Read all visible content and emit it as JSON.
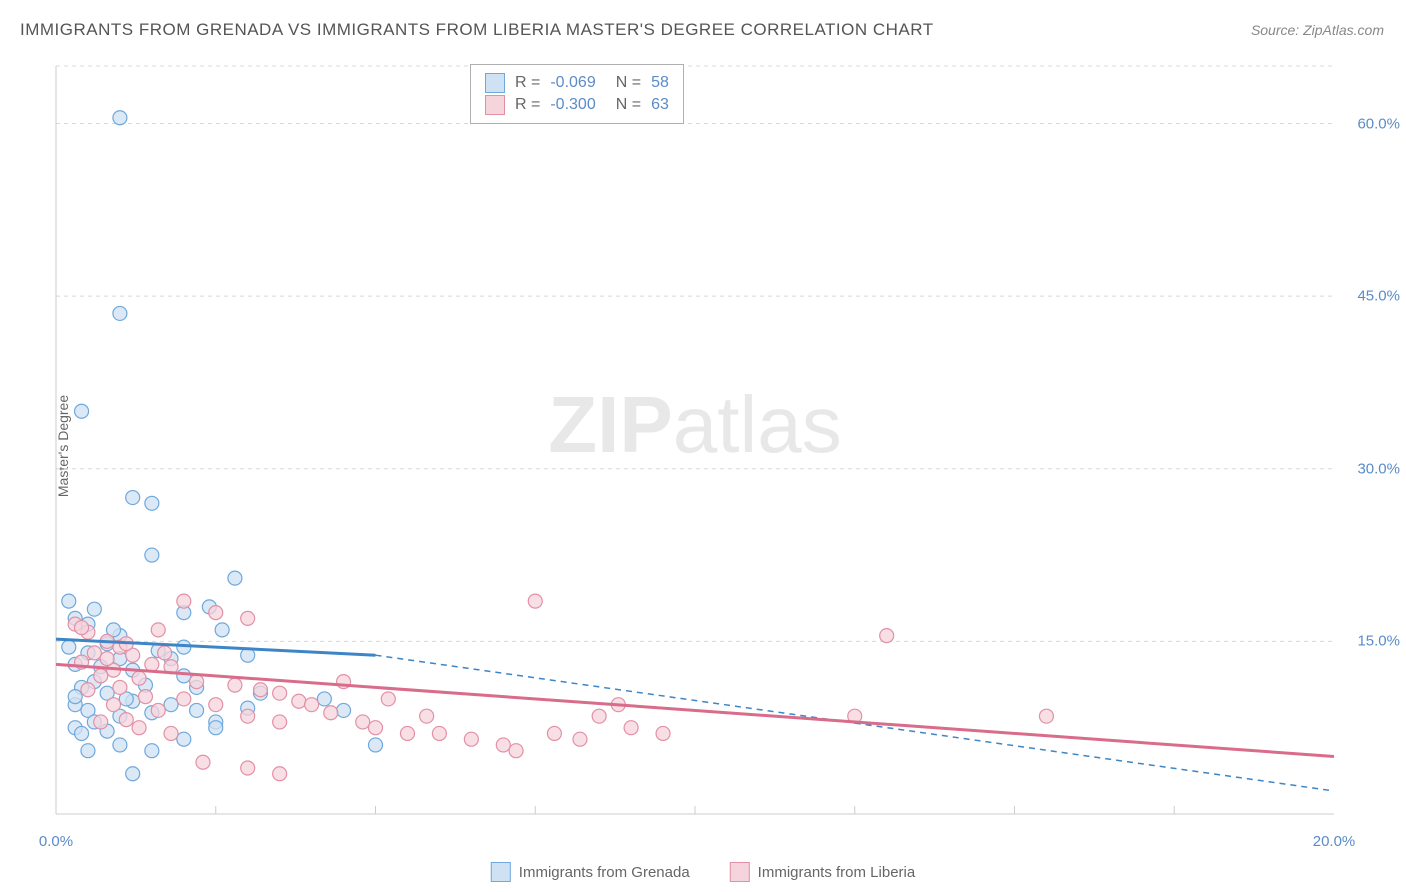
{
  "title": "IMMIGRANTS FROM GRENADA VS IMMIGRANTS FROM LIBERIA MASTER'S DEGREE CORRELATION CHART",
  "source": "Source: ZipAtlas.com",
  "ylabel": "Master's Degree",
  "watermark_a": "ZIP",
  "watermark_b": "atlas",
  "chart": {
    "type": "scatter",
    "xlim": [
      0,
      20
    ],
    "ylim": [
      0,
      65
    ],
    "xticks": [
      0,
      20
    ],
    "xtick_labels": [
      "0.0%",
      "20.0%"
    ],
    "yticks": [
      15,
      30,
      45,
      60
    ],
    "ytick_labels": [
      "15.0%",
      "30.0%",
      "45.0%",
      "60.0%"
    ],
    "x_minor_ticks": [
      2.5,
      5,
      7.5,
      10,
      12.5,
      15,
      17.5
    ],
    "background_color": "#ffffff",
    "grid_color": "#d8d8d8",
    "axis_color": "#cccccc",
    "tick_label_color": "#5b8bc9",
    "marker_radius": 7,
    "marker_stroke_width": 1.2,
    "line_width_solid": 3,
    "line_width_dash": 1.5,
    "series": [
      {
        "name": "Immigrants from Grenada",
        "fill": "#cfe2f3",
        "stroke": "#6fa8dc",
        "line_color": "#3d85c6",
        "R_label": "R = ",
        "R": "-0.069",
        "N_label": "N = ",
        "N": "58",
        "trend_solid": {
          "x1": 0,
          "y1": 15.2,
          "x2": 5,
          "y2": 13.8
        },
        "trend_dash": {
          "x1": 5,
          "y1": 13.8,
          "x2": 20,
          "y2": 2.0
        },
        "points": [
          [
            1.0,
            60.5
          ],
          [
            1.0,
            43.5
          ],
          [
            0.4,
            35.0
          ],
          [
            1.2,
            27.5
          ],
          [
            1.5,
            27.0
          ],
          [
            1.5,
            22.5
          ],
          [
            0.2,
            18.5
          ],
          [
            0.3,
            17.0
          ],
          [
            2.8,
            20.5
          ],
          [
            2.4,
            18.0
          ],
          [
            1.0,
            15.5
          ],
          [
            0.5,
            16.5
          ],
          [
            0.8,
            14.8
          ],
          [
            0.5,
            14.0
          ],
          [
            0.3,
            13.0
          ],
          [
            1.0,
            13.5
          ],
          [
            1.2,
            12.5
          ],
          [
            0.6,
            11.5
          ],
          [
            0.4,
            11.0
          ],
          [
            1.6,
            14.2
          ],
          [
            1.8,
            13.5
          ],
          [
            2.0,
            12.0
          ],
          [
            2.2,
            11.0
          ],
          [
            0.8,
            10.5
          ],
          [
            0.3,
            9.5
          ],
          [
            0.5,
            9.0
          ],
          [
            1.2,
            9.8
          ],
          [
            1.0,
            8.5
          ],
          [
            0.6,
            8.0
          ],
          [
            0.3,
            7.5
          ],
          [
            0.4,
            7.0
          ],
          [
            0.8,
            7.2
          ],
          [
            1.5,
            8.8
          ],
          [
            1.8,
            9.5
          ],
          [
            2.2,
            9.0
          ],
          [
            2.5,
            8.0
          ],
          [
            3.0,
            13.8
          ],
          [
            3.2,
            10.5
          ],
          [
            3.0,
            9.2
          ],
          [
            4.2,
            10.0
          ],
          [
            4.5,
            9.0
          ],
          [
            5.0,
            6.0
          ],
          [
            1.0,
            6.0
          ],
          [
            1.5,
            5.5
          ],
          [
            0.5,
            5.5
          ],
          [
            2.0,
            6.5
          ],
          [
            2.5,
            7.5
          ],
          [
            1.2,
            3.5
          ],
          [
            2.0,
            14.5
          ],
          [
            0.2,
            14.5
          ],
          [
            0.7,
            12.8
          ],
          [
            1.4,
            11.2
          ],
          [
            0.9,
            16.0
          ],
          [
            0.6,
            17.8
          ],
          [
            1.1,
            10.0
          ],
          [
            0.3,
            10.2
          ],
          [
            2.0,
            17.5
          ],
          [
            2.6,
            16.0
          ]
        ]
      },
      {
        "name": "Immigrants from Liberia",
        "fill": "#f6d4dc",
        "stroke": "#e290a5",
        "line_color": "#d96b8b",
        "R_label": "R = ",
        "R": "-0.300",
        "N_label": "N = ",
        "N": "63",
        "trend_solid": {
          "x1": 0,
          "y1": 13.0,
          "x2": 20,
          "y2": 5.0
        },
        "trend_dash": null,
        "points": [
          [
            0.3,
            16.5
          ],
          [
            0.5,
            15.8
          ],
          [
            0.8,
            15.0
          ],
          [
            1.0,
            14.5
          ],
          [
            0.6,
            14.0
          ],
          [
            1.2,
            13.8
          ],
          [
            0.4,
            13.2
          ],
          [
            1.5,
            13.0
          ],
          [
            0.9,
            12.5
          ],
          [
            1.8,
            12.8
          ],
          [
            0.7,
            12.0
          ],
          [
            1.3,
            11.8
          ],
          [
            2.0,
            18.5
          ],
          [
            2.5,
            17.5
          ],
          [
            3.0,
            17.0
          ],
          [
            2.2,
            11.5
          ],
          [
            2.8,
            11.2
          ],
          [
            3.2,
            10.8
          ],
          [
            2.0,
            10.0
          ],
          [
            2.5,
            9.5
          ],
          [
            3.5,
            10.5
          ],
          [
            3.8,
            9.8
          ],
          [
            3.0,
            8.5
          ],
          [
            3.5,
            8.0
          ],
          [
            4.0,
            9.5
          ],
          [
            4.3,
            8.8
          ],
          [
            4.8,
            8.0
          ],
          [
            5.0,
            7.5
          ],
          [
            4.5,
            11.5
          ],
          [
            5.2,
            10.0
          ],
          [
            5.5,
            7.0
          ],
          [
            5.8,
            8.5
          ],
          [
            6.0,
            7.0
          ],
          [
            6.5,
            6.5
          ],
          [
            7.0,
            6.0
          ],
          [
            7.2,
            5.5
          ],
          [
            7.5,
            18.5
          ],
          [
            7.8,
            7.0
          ],
          [
            3.5,
            3.5
          ],
          [
            3.0,
            4.0
          ],
          [
            2.3,
            4.5
          ],
          [
            8.5,
            8.5
          ],
          [
            8.8,
            9.5
          ],
          [
            9.0,
            7.5
          ],
          [
            8.2,
            6.5
          ],
          [
            9.5,
            7.0
          ],
          [
            13.0,
            15.5
          ],
          [
            12.5,
            8.5
          ],
          [
            15.5,
            8.5
          ],
          [
            1.6,
            16.0
          ],
          [
            1.0,
            11.0
          ],
          [
            1.4,
            10.2
          ],
          [
            0.5,
            10.8
          ],
          [
            0.9,
            9.5
          ],
          [
            1.6,
            9.0
          ],
          [
            1.1,
            8.2
          ],
          [
            0.7,
            8.0
          ],
          [
            1.3,
            7.5
          ],
          [
            1.8,
            7.0
          ],
          [
            0.4,
            16.2
          ],
          [
            0.8,
            13.5
          ],
          [
            1.1,
            14.8
          ],
          [
            1.7,
            14.0
          ]
        ]
      }
    ]
  },
  "legend": {
    "items": [
      {
        "label": "Immigrants from Grenada",
        "fill": "#cfe2f3",
        "stroke": "#6fa8dc"
      },
      {
        "label": "Immigrants from Liberia",
        "fill": "#f6d4dc",
        "stroke": "#e290a5"
      }
    ]
  }
}
